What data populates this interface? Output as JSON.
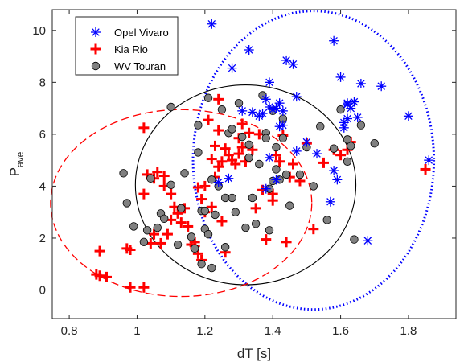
{
  "chart_data": {
    "type": "scatter",
    "xlabel": "dT [s]",
    "ylabel_main": "P",
    "ylabel_sub": "ave",
    "xlim": [
      0.75,
      1.94
    ],
    "ylim": [
      -1.1,
      10.8
    ],
    "xticks": [
      0.8,
      1,
      1.2,
      1.4,
      1.6,
      1.8
    ],
    "xtick_labels": [
      "0.8",
      "1",
      "1.2",
      "1.4",
      "1.6",
      "1.8"
    ],
    "yticks": [
      0,
      2,
      4,
      6,
      8,
      10
    ],
    "ytick_labels": [
      "0",
      "2",
      "4",
      "6",
      "8",
      "10"
    ],
    "grid": false,
    "legend_position": "top-left",
    "series": [
      {
        "name": "Opel Vivaro",
        "marker": "asterisk",
        "color": "#0000ff",
        "x": [
          1.22,
          1.33,
          1.28,
          1.44,
          1.46,
          1.39,
          1.41,
          1.37,
          1.39,
          1.42,
          1.38,
          1.4,
          1.36,
          1.47,
          1.43,
          1.34,
          1.39,
          1.41,
          1.5,
          1.58,
          1.6,
          1.66,
          1.62,
          1.63,
          1.65,
          1.61,
          1.62,
          1.64,
          1.62,
          1.72,
          1.8,
          1.86,
          1.58,
          1.59,
          1.47,
          1.53,
          1.43,
          1.38,
          1.27,
          1.24,
          1.68,
          1.42,
          1.57,
          1.61,
          1.31
        ],
        "y": [
          10.25,
          9.25,
          8.55,
          8.85,
          8.7,
          8.0,
          7.0,
          6.8,
          7.05,
          7.2,
          7.35,
          6.95,
          6.7,
          7.45,
          6.35,
          6.85,
          5.1,
          4.25,
          5.7,
          9.6,
          8.2,
          7.95,
          7.2,
          7.0,
          6.65,
          6.45,
          6.6,
          7.25,
          7.15,
          7.85,
          6.7,
          5.0,
          4.6,
          4.25,
          5.35,
          5.25,
          6.9,
          3.9,
          4.3,
          4.15,
          1.9,
          6.3,
          3.4,
          6.25,
          6.9
        ]
      },
      {
        "name": "Kia Rio",
        "marker": "plus",
        "color": "#ff0000",
        "x": [
          0.88,
          0.89,
          0.91,
          0.89,
          0.97,
          0.98,
          0.98,
          1.02,
          1.04,
          1.02,
          1.03,
          1.05,
          1.06,
          1.07,
          1.09,
          1.1,
          1.11,
          1.14,
          1.16,
          1.17,
          1.17,
          1.18,
          1.19,
          1.2,
          1.21,
          1.22,
          1.23,
          1.24,
          1.24,
          1.25,
          1.26,
          1.28,
          1.3,
          1.3,
          1.31,
          1.32,
          1.33,
          1.35,
          1.37,
          1.38,
          1.4,
          1.41,
          1.43,
          1.44,
          1.46,
          1.48,
          1.5,
          1.52,
          1.55,
          1.58,
          1.6,
          1.62,
          1.63,
          1.85,
          1.2,
          1.22,
          1.25,
          1.24,
          1.18,
          1.05,
          1.08,
          1.1,
          1.12,
          1.15,
          1.27,
          1.29,
          1.34,
          1.36,
          1.42,
          1.4,
          1.45,
          1.02,
          1.08,
          1.13,
          1.19,
          1.23,
          1.26,
          1.31
        ],
        "y": [
          0.6,
          1.5,
          0.5,
          0.55,
          1.6,
          0.1,
          1.55,
          0.1,
          1.8,
          3.7,
          4.45,
          4.3,
          4.55,
          1.8,
          2.15,
          2.7,
          3.2,
          3.15,
          1.75,
          1.85,
          1.7,
          1.4,
          1.15,
          3.0,
          6.55,
          5.05,
          5.55,
          4.75,
          7.35,
          2.65,
          1.45,
          5.0,
          5.25,
          5.85,
          5.5,
          4.95,
          6.05,
          3.15,
          3.85,
          1.95,
          3.7,
          5.2,
          5.95,
          1.85,
          4.85,
          4.2,
          5.65,
          2.35,
          4.9,
          5.4,
          5.2,
          5.4,
          5.7,
          4.65,
          4.0,
          3.2,
          4.95,
          6.15,
          3.95,
          2.15,
          4.4,
          3.7,
          2.95,
          2.45,
          5.2,
          4.85,
          5.4,
          6.0,
          4.95,
          3.45,
          4.35,
          6.25,
          4.0,
          2.6,
          3.5,
          4.35,
          5.45,
          6.4
        ]
      },
      {
        "name": "WV Touran",
        "marker": "circle",
        "color": "#808080",
        "x": [
          0.96,
          0.97,
          0.99,
          1.02,
          1.04,
          1.06,
          1.07,
          1.08,
          1.1,
          1.13,
          1.14,
          1.16,
          1.17,
          1.18,
          1.19,
          1.2,
          1.2,
          1.21,
          1.22,
          1.23,
          1.24,
          1.25,
          1.26,
          1.27,
          1.28,
          1.29,
          1.3,
          1.31,
          1.32,
          1.33,
          1.34,
          1.35,
          1.36,
          1.37,
          1.38,
          1.39,
          1.4,
          1.41,
          1.42,
          1.43,
          1.44,
          1.45,
          1.48,
          1.5,
          1.52,
          1.54,
          1.56,
          1.58,
          1.6,
          1.62,
          1.63,
          1.64,
          1.66,
          1.7,
          1.62,
          1.39,
          1.4,
          1.21,
          1.19,
          1.1,
          1.12,
          1.03,
          1.26,
          1.28,
          1.33,
          1.38,
          1.41,
          1.43,
          1.22,
          1.18
        ],
        "y": [
          4.5,
          3.35,
          2.45,
          1.85,
          4.3,
          2.4,
          2.95,
          2.75,
          7.05,
          3.15,
          4.5,
          2.05,
          1.6,
          5.3,
          3.05,
          3.05,
          2.35,
          7.4,
          4.25,
          2.9,
          4.0,
          6.95,
          1.65,
          6.05,
          3.55,
          3.0,
          7.2,
          5.9,
          2.4,
          5.6,
          3.55,
          2.55,
          4.85,
          7.5,
          6.05,
          3.9,
          6.9,
          5.5,
          4.25,
          5.85,
          4.45,
          3.25,
          4.45,
          5.5,
          4.0,
          6.3,
          2.7,
          5.45,
          6.95,
          4.95,
          5.55,
          1.95,
          6.35,
          5.65,
          5.8,
          2.3,
          4.2,
          2.15,
          1.0,
          4.05,
          1.75,
          2.3,
          3.55,
          6.2,
          5.1,
          5.85,
          4.65,
          6.6,
          0.85,
          6.35
        ]
      }
    ],
    "ellipses": [
      {
        "series": "Opel Vivaro",
        "style": "dotted",
        "color": "#0000ff",
        "cx": 1.52,
        "cy": 5.0,
        "rx": 0.355,
        "ry": 5.75
      },
      {
        "series": "WV Touran",
        "style": "solid",
        "color": "#000000",
        "cx": 1.32,
        "cy": 4.05,
        "rx": 0.325,
        "ry": 3.85
      },
      {
        "series": "Kia Rio",
        "style": "dashed",
        "color": "#ff0000",
        "cx": 1.13,
        "cy": 3.35,
        "rx": 0.385,
        "ry": 3.6
      }
    ]
  }
}
